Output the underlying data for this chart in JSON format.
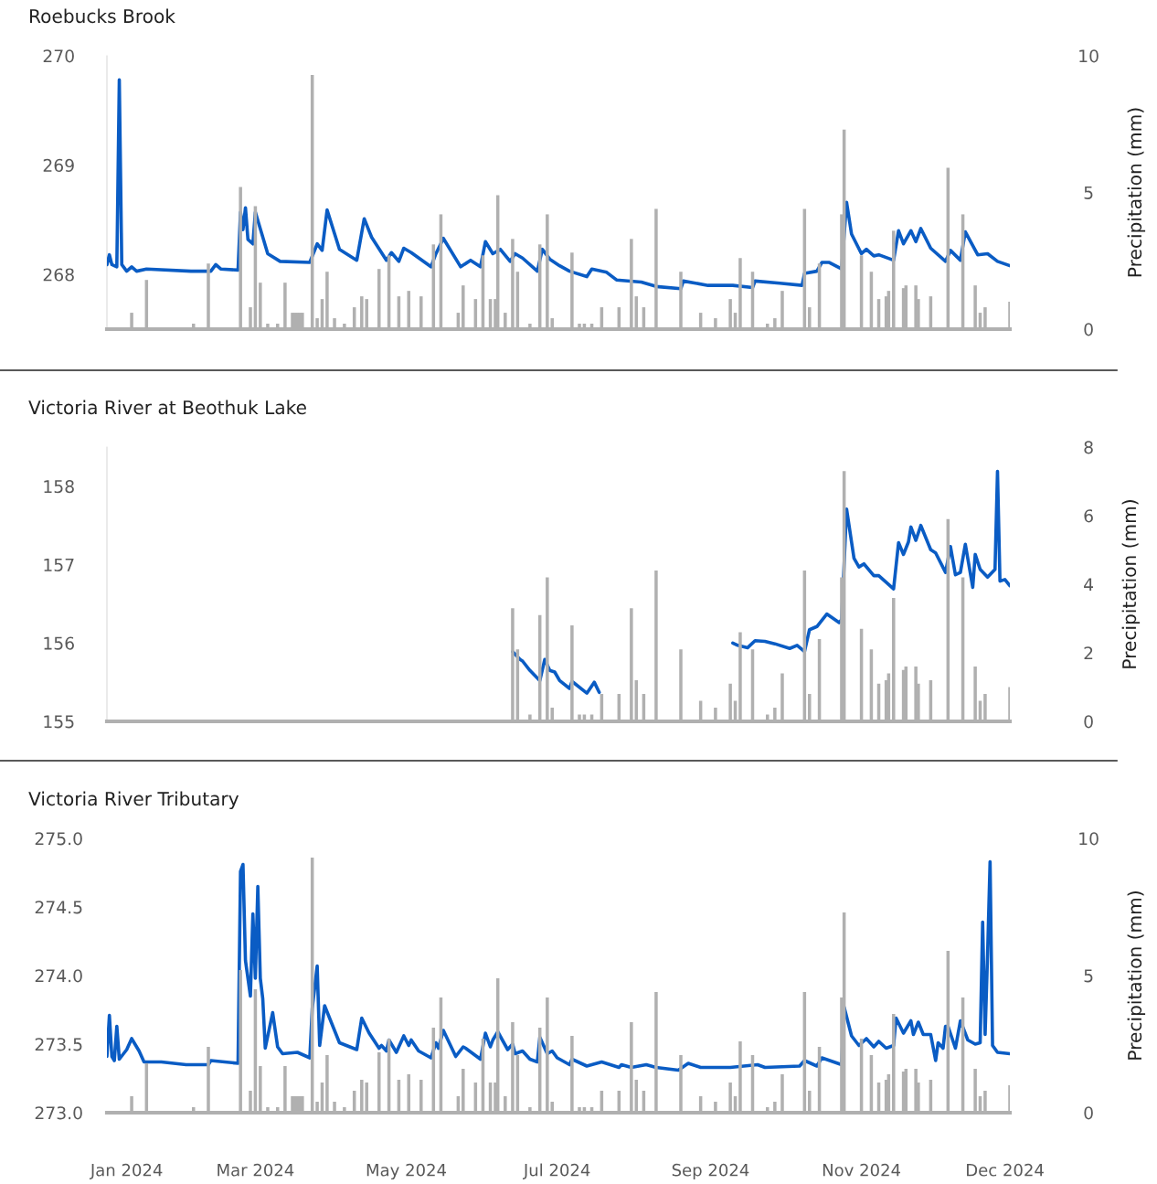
{
  "chart_data": [
    {
      "type": "line",
      "title": "Roebucks Brook",
      "y2label": "Precipitation (mm)",
      "xlim": [
        "2024-01-01",
        "2024-12-31"
      ],
      "ylim": [
        267.5,
        270
      ],
      "yticks": [
        268,
        269,
        270
      ],
      "y2lim": [
        0,
        10
      ],
      "y2ticks": [
        0,
        5,
        10
      ],
      "tick_labels": "y",
      "grid": false,
      "series": [
        {
          "type": "bar",
          "axis": "y2",
          "color": "#b0b0b0",
          "x": [
            "2024-01-11",
            "2024-01-17",
            "2024-02-05",
            "2024-02-11",
            "2024-02-24",
            "2024-02-28",
            "2024-03-01",
            "2024-03-03",
            "2024-03-06",
            "2024-03-10",
            "2024-03-13",
            "2024-03-16",
            "2024-03-17",
            "2024-03-18",
            "2024-03-19",
            "2024-03-20",
            "2024-03-24",
            "2024-03-26",
            "2024-03-28",
            "2024-03-30",
            "2024-04-02",
            "2024-04-06",
            "2024-04-10",
            "2024-04-13",
            "2024-04-15",
            "2024-04-20",
            "2024-04-24",
            "2024-04-28",
            "2024-05-02",
            "2024-05-07",
            "2024-05-12",
            "2024-05-15",
            "2024-05-22",
            "2024-05-24",
            "2024-05-29",
            "2024-06-01",
            "2024-06-04",
            "2024-06-06",
            "2024-06-07",
            "2024-06-10",
            "2024-06-13",
            "2024-06-15",
            "2024-06-20",
            "2024-06-24",
            "2024-06-27",
            "2024-06-29",
            "2024-07-07",
            "2024-07-10",
            "2024-07-12",
            "2024-07-15",
            "2024-07-19",
            "2024-07-26",
            "2024-07-31",
            "2024-08-02",
            "2024-08-05",
            "2024-08-10",
            "2024-08-20",
            "2024-08-28",
            "2024-09-03",
            "2024-09-09",
            "2024-09-11",
            "2024-09-13",
            "2024-09-18",
            "2024-09-24",
            "2024-09-27",
            "2024-09-30",
            "2024-10-09",
            "2024-10-11",
            "2024-10-15",
            "2024-10-24",
            "2024-10-25",
            "2024-11-01",
            "2024-11-05",
            "2024-11-08",
            "2024-11-11",
            "2024-11-12",
            "2024-11-14",
            "2024-11-18",
            "2024-11-19",
            "2024-11-23",
            "2024-11-24",
            "2024-11-29",
            "2024-12-06",
            "2024-12-12",
            "2024-12-17",
            "2024-12-19",
            "2024-12-21",
            "2024-12-31"
          ],
          "values": [
            0.6,
            1.8,
            0.2,
            2.4,
            5.2,
            0.8,
            4.5,
            1.7,
            0.2,
            0.2,
            1.7,
            0.6,
            0.6,
            0.6,
            0.6,
            0.6,
            9.3,
            0.4,
            1.1,
            2.1,
            0.4,
            0.2,
            0.8,
            1.2,
            1.1,
            2.2,
            2.7,
            1.2,
            1.4,
            1.2,
            3.1,
            4.2,
            0.6,
            1.6,
            1.1,
            2.7,
            1.1,
            1.1,
            4.9,
            0.6,
            3.3,
            2.1,
            0.2,
            3.1,
            4.2,
            0.4,
            2.8,
            0.2,
            0.2,
            0.2,
            0.8,
            0.8,
            3.3,
            1.2,
            0.8,
            4.4,
            2.1,
            0.6,
            0.4,
            1.1,
            0.6,
            2.6,
            2.1,
            0.2,
            0.4,
            1.4,
            4.4,
            0.8,
            2.4,
            4.2,
            7.3,
            2.7,
            2.1,
            1.1,
            1.2,
            1.4,
            3.6,
            1.5,
            1.6,
            1.6,
            1.1,
            1.2,
            5.9,
            4.2,
            1.6,
            0.6,
            0.8,
            1.0
          ]
        },
        {
          "color": "#0a5cc4",
          "x": [
            "2024-01-01",
            "2024-01-02",
            "2024-01-03",
            "2024-01-05",
            "2024-01-06",
            "2024-01-07",
            "2024-01-09",
            "2024-01-11",
            "2024-01-13",
            "2024-01-17",
            "2024-02-04",
            "2024-02-12",
            "2024-02-14",
            "2024-02-16",
            "2024-02-23",
            "2024-02-24",
            "2024-02-25",
            "2024-02-26",
            "2024-02-27",
            "2024-02-29",
            "2024-03-01",
            "2024-03-06",
            "2024-03-11",
            "2024-03-23",
            "2024-03-26",
            "2024-03-28",
            "2024-03-30",
            "2024-04-04",
            "2024-04-11",
            "2024-04-14",
            "2024-04-17",
            "2024-04-23",
            "2024-04-25",
            "2024-04-28",
            "2024-04-30",
            "2024-05-03",
            "2024-05-11",
            "2024-05-13",
            "2024-05-16",
            "2024-05-23",
            "2024-05-27",
            "2024-05-31",
            "2024-06-02",
            "2024-06-05",
            "2024-06-08",
            "2024-06-12",
            "2024-06-14",
            "2024-06-17",
            "2024-06-23",
            "2024-06-25",
            "2024-06-28",
            "2024-07-02",
            "2024-07-06",
            "2024-07-13",
            "2024-07-15",
            "2024-07-21",
            "2024-07-25",
            "2024-08-04",
            "2024-08-10",
            "2024-08-20",
            "2024-08-21",
            "2024-08-31",
            "2024-09-10",
            "2024-09-18",
            "2024-09-19",
            "2024-09-29",
            "2024-10-08",
            "2024-10-09",
            "2024-10-14",
            "2024-10-16",
            "2024-10-19",
            "2024-10-24",
            "2024-10-26",
            "2024-10-28",
            "2024-11-01",
            "2024-11-03",
            "2024-11-06",
            "2024-11-08",
            "2024-11-14",
            "2024-11-16",
            "2024-11-18",
            "2024-11-21",
            "2024-11-23",
            "2024-11-25",
            "2024-11-29",
            "2024-12-05",
            "2024-12-07",
            "2024-12-11",
            "2024-12-13",
            "2024-12-18",
            "2024-12-22",
            "2024-12-26",
            "2024-12-31"
          ],
          "values": [
            268.09,
            268.18,
            268.09,
            268.07,
            269.78,
            268.09,
            268.03,
            268.07,
            268.03,
            268.05,
            268.03,
            268.03,
            268.09,
            268.05,
            268.04,
            268.57,
            268.41,
            268.61,
            268.32,
            268.28,
            268.57,
            268.19,
            268.12,
            268.11,
            268.28,
            268.22,
            268.59,
            268.23,
            268.13,
            268.51,
            268.34,
            268.13,
            268.2,
            268.12,
            268.24,
            268.2,
            268.07,
            268.19,
            268.33,
            268.07,
            268.13,
            268.07,
            268.3,
            268.19,
            268.23,
            268.12,
            268.19,
            268.15,
            268.03,
            268.23,
            268.14,
            268.08,
            268.03,
            267.98,
            268.05,
            268.02,
            267.95,
            267.93,
            267.89,
            267.87,
            267.94,
            267.9,
            267.9,
            267.88,
            267.94,
            267.92,
            267.9,
            268.01,
            268.03,
            268.11,
            268.11,
            268.05,
            268.66,
            268.37,
            268.19,
            268.23,
            268.17,
            268.18,
            268.13,
            268.4,
            268.28,
            268.4,
            268.3,
            268.42,
            268.24,
            268.12,
            268.22,
            268.13,
            268.39,
            268.18,
            268.19,
            268.12,
            268.08
          ]
        }
      ]
    },
    {
      "type": "line",
      "title": "Victoria River at Beothuk Lake",
      "y2label": "Precipitation (mm)",
      "xlim": [
        "2024-01-01",
        "2024-12-31"
      ],
      "ylim": [
        155,
        158.5
      ],
      "yticks": [
        155,
        156,
        157,
        158
      ],
      "y2lim": [
        0,
        8
      ],
      "y2ticks": [
        0,
        2,
        4,
        6,
        8
      ],
      "tick_labels": "y",
      "grid": false,
      "series": [
        {
          "type": "bar",
          "axis": "y2",
          "color": "#b0b0b0",
          "x": [
            "2024-06-13",
            "2024-06-15",
            "2024-06-20",
            "2024-06-24",
            "2024-06-27",
            "2024-06-29",
            "2024-07-07",
            "2024-07-10",
            "2024-07-12",
            "2024-07-15",
            "2024-07-19",
            "2024-07-26",
            "2024-07-31",
            "2024-08-02",
            "2024-08-05",
            "2024-08-10",
            "2024-08-20",
            "2024-08-28",
            "2024-09-03",
            "2024-09-09",
            "2024-09-11",
            "2024-09-13",
            "2024-09-18",
            "2024-09-24",
            "2024-09-27",
            "2024-09-30",
            "2024-10-09",
            "2024-10-11",
            "2024-10-15",
            "2024-10-24",
            "2024-10-25",
            "2024-11-01",
            "2024-11-05",
            "2024-11-08",
            "2024-11-11",
            "2024-11-12",
            "2024-11-14",
            "2024-11-18",
            "2024-11-19",
            "2024-11-23",
            "2024-11-24",
            "2024-11-29",
            "2024-12-06",
            "2024-12-12",
            "2024-12-17",
            "2024-12-19",
            "2024-12-21",
            "2024-12-31"
          ],
          "values": [
            3.3,
            2.1,
            0.2,
            3.1,
            4.2,
            0.4,
            2.8,
            0.2,
            0.2,
            0.2,
            0.8,
            0.8,
            3.3,
            1.2,
            0.8,
            4.4,
            2.1,
            0.6,
            0.4,
            1.1,
            0.6,
            2.6,
            2.1,
            0.2,
            0.4,
            1.4,
            4.4,
            0.8,
            2.4,
            4.2,
            7.3,
            2.7,
            2.1,
            1.1,
            1.2,
            1.4,
            3.6,
            1.5,
            1.6,
            1.6,
            1.1,
            1.2,
            5.9,
            4.2,
            1.6,
            0.6,
            0.8,
            1.0
          ]
        },
        {
          "color": "#0a5cc4",
          "x": [
            "2024-06-13",
            "2024-06-16",
            "2024-06-17",
            "2024-06-20",
            "2024-06-24",
            "2024-06-26",
            "2024-06-28",
            "2024-06-30",
            "2024-07-02",
            "2024-07-06",
            "2024-07-07",
            "2024-07-13",
            "2024-07-16",
            "2024-07-18",
            "2024-08-01",
            "2024-09-10",
            "2024-09-12",
            "2024-09-16",
            "2024-09-19",
            "2024-09-23",
            "2024-09-27",
            "2024-10-03",
            "2024-10-06",
            "2024-10-09",
            "2024-10-11",
            "2024-10-14",
            "2024-10-18",
            "2024-10-23",
            "2024-10-24",
            "2024-10-26",
            "2024-10-29",
            "2024-10-31",
            "2024-11-02",
            "2024-11-06",
            "2024-11-08",
            "2024-11-14",
            "2024-11-16",
            "2024-11-18",
            "2024-11-20",
            "2024-11-21",
            "2024-11-23",
            "2024-11-25",
            "2024-11-29",
            "2024-12-01",
            "2024-12-05",
            "2024-12-07",
            "2024-12-09",
            "2024-12-11",
            "2024-12-13",
            "2024-12-16",
            "2024-12-17",
            "2024-12-19",
            "2024-12-22",
            "2024-12-25",
            "2024-12-26",
            "2024-12-27",
            "2024-12-29",
            "2024-12-31"
          ],
          "values": [
            155.89,
            155.79,
            155.77,
            155.65,
            155.52,
            155.79,
            155.65,
            155.63,
            155.52,
            155.42,
            155.51,
            155.36,
            155.5,
            155.37,
            null,
            156.0,
            155.97,
            155.94,
            156.03,
            156.02,
            155.99,
            155.93,
            155.97,
            155.89,
            156.17,
            156.21,
            156.37,
            156.26,
            156.3,
            157.71,
            157.08,
            156.97,
            157.01,
            156.86,
            156.86,
            156.69,
            157.28,
            157.13,
            157.29,
            157.48,
            157.31,
            157.5,
            157.19,
            157.15,
            156.9,
            157.23,
            156.87,
            156.9,
            157.26,
            156.71,
            157.13,
            156.94,
            156.84,
            156.94,
            158.19,
            156.79,
            156.81,
            156.73
          ]
        }
      ]
    },
    {
      "type": "line",
      "title": "Victoria River Tributary",
      "y2label": "Precipitation (mm)",
      "xlim": [
        "2024-01-01",
        "2024-12-31"
      ],
      "ylim": [
        273,
        275
      ],
      "yticks": [
        {
          "value": 273,
          "label": "273.0"
        },
        {
          "value": 273.5,
          "label": "273.5"
        },
        {
          "value": 274,
          "label": "274.0"
        },
        {
          "value": 274.5,
          "label": "274.5"
        },
        {
          "value": 275,
          "label": "275.0"
        }
      ],
      "y2lim": [
        0,
        10
      ],
      "y2ticks": [
        0,
        5,
        10
      ],
      "xticks": [
        {
          "value": "2024-01-09",
          "label": "Jan 2024"
        },
        {
          "value": "2024-03-01",
          "label": "Mar 2024"
        },
        {
          "value": "2024-05-01",
          "label": "May 2024"
        },
        {
          "value": "2024-07-01",
          "label": "Jul 2024"
        },
        {
          "value": "2024-09-01",
          "label": "Sep 2024"
        },
        {
          "value": "2024-11-01",
          "label": "Nov 2024"
        },
        {
          "value": "2024-12-29",
          "label": "Dec 2024"
        }
      ],
      "grid": false,
      "series": [
        {
          "type": "bar",
          "axis": "y2",
          "color": "#b0b0b0",
          "x": [
            "2024-01-11",
            "2024-01-17",
            "2024-02-05",
            "2024-02-11",
            "2024-02-24",
            "2024-02-28",
            "2024-03-01",
            "2024-03-03",
            "2024-03-06",
            "2024-03-10",
            "2024-03-13",
            "2024-03-16",
            "2024-03-17",
            "2024-03-18",
            "2024-03-19",
            "2024-03-20",
            "2024-03-24",
            "2024-03-26",
            "2024-03-28",
            "2024-03-30",
            "2024-04-02",
            "2024-04-06",
            "2024-04-10",
            "2024-04-13",
            "2024-04-15",
            "2024-04-20",
            "2024-04-24",
            "2024-04-28",
            "2024-05-02",
            "2024-05-07",
            "2024-05-12",
            "2024-05-15",
            "2024-05-22",
            "2024-05-24",
            "2024-05-29",
            "2024-06-01",
            "2024-06-04",
            "2024-06-06",
            "2024-06-07",
            "2024-06-10",
            "2024-06-13",
            "2024-06-15",
            "2024-06-20",
            "2024-06-24",
            "2024-06-27",
            "2024-06-29",
            "2024-07-07",
            "2024-07-10",
            "2024-07-12",
            "2024-07-15",
            "2024-07-19",
            "2024-07-26",
            "2024-07-31",
            "2024-08-02",
            "2024-08-05",
            "2024-08-10",
            "2024-08-20",
            "2024-08-28",
            "2024-09-03",
            "2024-09-09",
            "2024-09-11",
            "2024-09-13",
            "2024-09-18",
            "2024-09-24",
            "2024-09-27",
            "2024-09-30",
            "2024-10-09",
            "2024-10-11",
            "2024-10-15",
            "2024-10-24",
            "2024-10-25",
            "2024-11-01",
            "2024-11-05",
            "2024-11-08",
            "2024-11-11",
            "2024-11-12",
            "2024-11-14",
            "2024-11-18",
            "2024-11-19",
            "2024-11-23",
            "2024-11-24",
            "2024-11-29",
            "2024-12-06",
            "2024-12-12",
            "2024-12-17",
            "2024-12-19",
            "2024-12-21",
            "2024-12-31"
          ],
          "values": [
            0.6,
            1.8,
            0.2,
            2.4,
            5.2,
            0.8,
            4.5,
            1.7,
            0.2,
            0.2,
            1.7,
            0.6,
            0.6,
            0.6,
            0.6,
            0.6,
            9.3,
            0.4,
            1.1,
            2.1,
            0.4,
            0.2,
            0.8,
            1.2,
            1.1,
            2.2,
            2.7,
            1.2,
            1.4,
            1.2,
            3.1,
            4.2,
            0.6,
            1.6,
            1.1,
            2.7,
            1.1,
            1.1,
            4.9,
            0.6,
            3.3,
            2.1,
            0.2,
            3.1,
            4.2,
            0.4,
            2.8,
            0.2,
            0.2,
            0.2,
            0.8,
            0.8,
            3.3,
            1.2,
            0.8,
            4.4,
            2.1,
            0.6,
            0.4,
            1.1,
            0.6,
            2.6,
            2.1,
            0.2,
            0.4,
            1.4,
            4.4,
            0.8,
            2.4,
            4.2,
            7.3,
            2.7,
            2.1,
            1.1,
            1.2,
            1.4,
            3.6,
            1.5,
            1.6,
            1.6,
            1.1,
            1.2,
            5.9,
            4.2,
            1.6,
            0.6,
            0.8,
            1.0
          ]
        },
        {
          "color": "#0a5cc4",
          "x": [
            "2024-01-01",
            "2024-01-02",
            "2024-01-03",
            "2024-01-04",
            "2024-01-05",
            "2024-01-06",
            "2024-01-09",
            "2024-01-11",
            "2024-01-14",
            "2024-01-16",
            "2024-01-23",
            "2024-02-02",
            "2024-02-11",
            "2024-02-12",
            "2024-02-23",
            "2024-02-24",
            "2024-02-25",
            "2024-02-26",
            "2024-02-28",
            "2024-02-29",
            "2024-03-01",
            "2024-03-02",
            "2024-03-03",
            "2024-03-04",
            "2024-03-05",
            "2024-03-08",
            "2024-03-10",
            "2024-03-12",
            "2024-03-18",
            "2024-03-23",
            "2024-03-24",
            "2024-03-26",
            "2024-03-27",
            "2024-03-29",
            "2024-04-04",
            "2024-04-11",
            "2024-04-13",
            "2024-04-16",
            "2024-04-20",
            "2024-04-21",
            "2024-04-23",
            "2024-04-24",
            "2024-04-27",
            "2024-04-30",
            "2024-05-02",
            "2024-05-03",
            "2024-05-06",
            "2024-05-11",
            "2024-05-13",
            "2024-05-14",
            "2024-05-16",
            "2024-05-21",
            "2024-05-24",
            "2024-05-25",
            "2024-05-31",
            "2024-06-02",
            "2024-06-04",
            "2024-06-05",
            "2024-06-07",
            "2024-06-11",
            "2024-06-13",
            "2024-06-14",
            "2024-06-17",
            "2024-06-20",
            "2024-06-23",
            "2024-06-24",
            "2024-06-27",
            "2024-06-29",
            "2024-07-01",
            "2024-07-06",
            "2024-07-07",
            "2024-07-13",
            "2024-07-19",
            "2024-07-26",
            "2024-07-27",
            "2024-07-31",
            "2024-08-06",
            "2024-08-10",
            "2024-08-19",
            "2024-08-23",
            "2024-08-28",
            "2024-09-02",
            "2024-09-09",
            "2024-09-20",
            "2024-09-23",
            "2024-10-07",
            "2024-10-09",
            "2024-10-14",
            "2024-10-16",
            "2024-10-24",
            "2024-10-25",
            "2024-10-28",
            "2024-10-31",
            "2024-11-03",
            "2024-11-06",
            "2024-11-08",
            "2024-11-11",
            "2024-11-14",
            "2024-11-15",
            "2024-11-18",
            "2024-11-21",
            "2024-11-22",
            "2024-11-24",
            "2024-11-26",
            "2024-11-29",
            "2024-12-01",
            "2024-12-02",
            "2024-12-04",
            "2024-12-05",
            "2024-12-06",
            "2024-12-09",
            "2024-12-11",
            "2024-12-14",
            "2024-12-17",
            "2024-12-19",
            "2024-12-20",
            "2024-12-21",
            "2024-12-22",
            "2024-12-23",
            "2024-12-24",
            "2024-12-26",
            "2024-12-31"
          ],
          "values": [
            273.41,
            273.71,
            273.41,
            273.38,
            273.63,
            273.39,
            273.46,
            273.54,
            273.45,
            273.37,
            273.37,
            273.35,
            273.35,
            273.38,
            273.36,
            274.76,
            274.81,
            274.11,
            273.85,
            274.45,
            273.98,
            274.65,
            273.98,
            273.83,
            273.47,
            273.73,
            273.48,
            273.43,
            273.44,
            273.4,
            273.76,
            274.07,
            273.49,
            273.78,
            273.51,
            273.46,
            273.69,
            273.58,
            273.47,
            273.49,
            273.45,
            273.53,
            273.44,
            273.56,
            273.49,
            273.53,
            273.45,
            273.4,
            273.51,
            273.47,
            273.6,
            273.41,
            273.48,
            273.47,
            273.39,
            273.58,
            273.48,
            273.53,
            273.59,
            273.46,
            273.5,
            273.43,
            273.45,
            273.39,
            273.37,
            273.55,
            273.43,
            273.45,
            273.4,
            273.35,
            273.39,
            273.34,
            273.37,
            273.33,
            273.35,
            273.33,
            273.35,
            273.33,
            273.31,
            273.36,
            273.33,
            273.33,
            273.33,
            273.35,
            273.33,
            273.34,
            273.38,
            273.34,
            273.4,
            273.35,
            273.77,
            273.56,
            273.49,
            273.54,
            273.48,
            273.52,
            273.47,
            273.49,
            273.69,
            273.58,
            273.67,
            273.57,
            273.66,
            273.57,
            273.57,
            273.38,
            273.51,
            273.47,
            273.63,
            273.63,
            273.47,
            273.67,
            273.53,
            273.5,
            273.51,
            274.39,
            273.57,
            274.16,
            274.83,
            273.49,
            273.44,
            273.43
          ]
        }
      ]
    }
  ]
}
